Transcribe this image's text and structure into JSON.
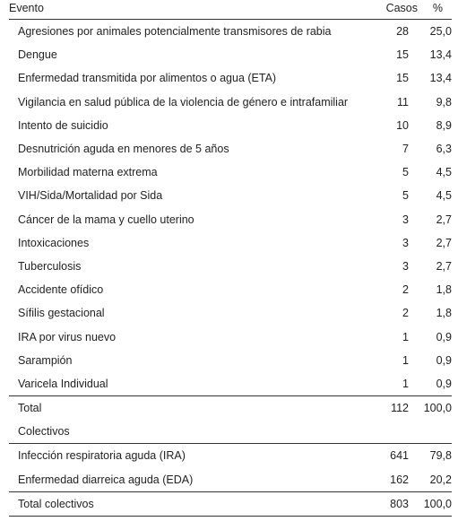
{
  "header": {
    "event": "Evento",
    "cases": "Casos",
    "pct": "%"
  },
  "rows": [
    {
      "event": "Agresiones por animales potencialmente transmisores de rabia",
      "cases": "28",
      "pct": "25,0"
    },
    {
      "event": "Dengue",
      "cases": "15",
      "pct": "13,4"
    },
    {
      "event": "Enfermedad transmitida por alimentos o agua (ETA)",
      "cases": "15",
      "pct": "13,4"
    },
    {
      "event": "Vigilancia en salud pública de la violencia de género e intrafamiliar",
      "cases": "11",
      "pct": "9,8"
    },
    {
      "event": "Intento de suicidio",
      "cases": "10",
      "pct": "8,9"
    },
    {
      "event": "Desnutrición aguda en menores de 5 años",
      "cases": "7",
      "pct": "6,3"
    },
    {
      "event": "Morbilidad materna extrema",
      "cases": "5",
      "pct": "4,5"
    },
    {
      "event": "VIH/Sida/Mortalidad por Sida",
      "cases": "5",
      "pct": "4,5"
    },
    {
      "event": "Cáncer de la mama y cuello uterino",
      "cases": "3",
      "pct": "2,7"
    },
    {
      "event": "Intoxicaciones",
      "cases": "3",
      "pct": "2,7"
    },
    {
      "event": "Tuberculosis",
      "cases": "3",
      "pct": "2,7"
    },
    {
      "event": "Accidente ofídico",
      "cases": "2",
      "pct": "1,8"
    },
    {
      "event": "Sífilis gestacional",
      "cases": "2",
      "pct": "1,8"
    },
    {
      "event": "IRA por virus nuevo",
      "cases": "1",
      "pct": "0,9"
    },
    {
      "event": "Sarampión",
      "cases": "1",
      "pct": "0,9"
    },
    {
      "event": "Varicela Individual",
      "cases": "1",
      "pct": "0,9"
    }
  ],
  "total": {
    "event": "Total",
    "cases": "112",
    "pct": "100,0"
  },
  "section_label": "Colectivos",
  "collective_rows": [
    {
      "event": "Infección respiratoria aguda (IRA)",
      "cases": "641",
      "pct": "79,8"
    },
    {
      "event": "Enfermedad diarreica aguda (EDA)",
      "cases": "162",
      "pct": "20,2"
    }
  ],
  "total_collective": {
    "event": "Total colectivos",
    "cases": "803",
    "pct": "100,0"
  }
}
